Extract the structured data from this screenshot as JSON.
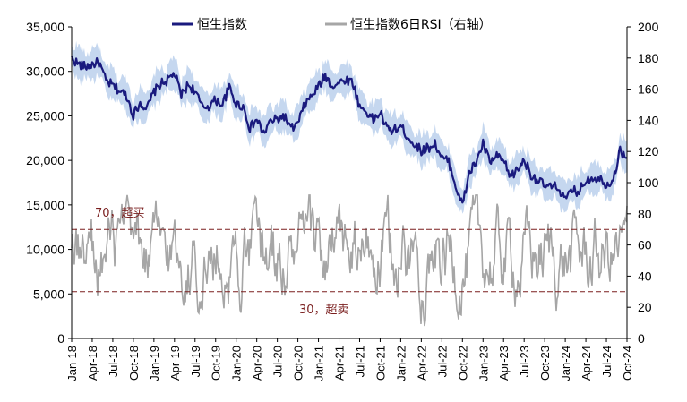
{
  "chart_data": {
    "type": "line",
    "title": "",
    "xlabel": "",
    "ylabel_left": "",
    "ylabel_right": "",
    "left_axis": {
      "min": 0,
      "max": 35000,
      "step": 5000,
      "ticks": [
        "0",
        "5,000",
        "10,000",
        "15,000",
        "20,000",
        "25,000",
        "30,000",
        "35,000"
      ]
    },
    "right_axis": {
      "min": 0,
      "max": 200,
      "step": 20,
      "ticks": [
        "0",
        "20",
        "40",
        "60",
        "80",
        "100",
        "120",
        "140",
        "160",
        "180",
        "200"
      ]
    },
    "x_ticks": [
      "Jan-18",
      "Apr-18",
      "Jul-18",
      "Oct-18",
      "Jan-19",
      "Apr-19",
      "Jul-19",
      "Oct-19",
      "Jan-20",
      "Apr-20",
      "Jul-20",
      "Oct-20",
      "Jan-21",
      "Apr-21",
      "Jul-21",
      "Oct-21",
      "Jan-22",
      "Apr-22",
      "Jul-22",
      "Oct-22",
      "Jan-23",
      "Apr-23",
      "Jul-23",
      "Oct-23",
      "Jan-24",
      "Apr-24",
      "Jul-24",
      "Oct-24"
    ],
    "legend": [
      {
        "label": "恒生指数",
        "color": "#1a1a7e"
      },
      {
        "label": "恒生指数6日RSI（右轴）",
        "color": "#a6a6a6"
      }
    ],
    "annotations": {
      "overbought": {
        "value": 70,
        "label": "70，超买",
        "color": "#7a1f1f"
      },
      "oversold": {
        "value": 30,
        "label": "30，超卖",
        "color": "#7a1f1f"
      }
    },
    "band_color": "#c5d7ef",
    "series": [
      {
        "name": "恒生指数",
        "axis": "left",
        "color": "#1a1a7e",
        "x": [
          "2018-01",
          "2018-02",
          "2018-03",
          "2018-04",
          "2018-05",
          "2018-06",
          "2018-07",
          "2018-08",
          "2018-09",
          "2018-10",
          "2018-11",
          "2018-12",
          "2019-01",
          "2019-02",
          "2019-03",
          "2019-04",
          "2019-05",
          "2019-06",
          "2019-07",
          "2019-08",
          "2019-09",
          "2019-10",
          "2019-11",
          "2019-12",
          "2020-01",
          "2020-02",
          "2020-03",
          "2020-04",
          "2020-05",
          "2020-06",
          "2020-07",
          "2020-08",
          "2020-09",
          "2020-10",
          "2020-11",
          "2020-12",
          "2021-01",
          "2021-02",
          "2021-03",
          "2021-04",
          "2021-05",
          "2021-06",
          "2021-07",
          "2021-08",
          "2021-09",
          "2021-10",
          "2021-11",
          "2021-12",
          "2022-01",
          "2022-02",
          "2022-03",
          "2022-04",
          "2022-05",
          "2022-06",
          "2022-07",
          "2022-08",
          "2022-09",
          "2022-10",
          "2022-11",
          "2022-12",
          "2023-01",
          "2023-02",
          "2023-03",
          "2023-04",
          "2023-05",
          "2023-06",
          "2023-07",
          "2023-08",
          "2023-09",
          "2023-10",
          "2023-11",
          "2023-12",
          "2024-01",
          "2024-02",
          "2024-03",
          "2024-04",
          "2024-05",
          "2024-06",
          "2024-07",
          "2024-08",
          "2024-09",
          "2024-10"
        ],
        "values": [
          31500,
          30800,
          30500,
          30800,
          31000,
          28900,
          28400,
          27800,
          27300,
          25100,
          26500,
          25800,
          27700,
          28600,
          29000,
          29800,
          27300,
          28500,
          27800,
          26000,
          26100,
          26800,
          26300,
          28200,
          26300,
          26100,
          23600,
          24600,
          23000,
          24400,
          24600,
          25000,
          23500,
          24100,
          26300,
          27200,
          28300,
          29500,
          28400,
          28700,
          29100,
          28800,
          26000,
          25500,
          24500,
          25400,
          23500,
          23400,
          23800,
          22700,
          21800,
          21100,
          21400,
          21900,
          20200,
          19900,
          17200,
          14900,
          18600,
          19800,
          21900,
          19800,
          20400,
          19900,
          18200,
          18900,
          20100,
          18400,
          17800,
          17100,
          17000,
          17000,
          15500,
          16600,
          16500,
          17800,
          18100,
          18000,
          17300,
          17900,
          21100,
          20300
        ]
      },
      {
        "name": "恒生指数6日RSI（右轴）",
        "axis": "right",
        "color": "#a6a6a6"
      }
    ]
  }
}
